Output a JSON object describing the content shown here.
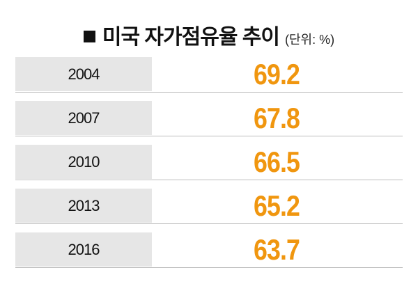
{
  "header": {
    "title": "미국 자가점유율 추이",
    "unit": "(단위: %)"
  },
  "table": {
    "rows": [
      {
        "year": "2004",
        "value": 69.2
      },
      {
        "year": "2007",
        "value": 67.8
      },
      {
        "year": "2010",
        "value": 66.5
      },
      {
        "year": "2013",
        "value": 65.2
      },
      {
        "year": "2016",
        "value": 63.7
      }
    ]
  }
}
